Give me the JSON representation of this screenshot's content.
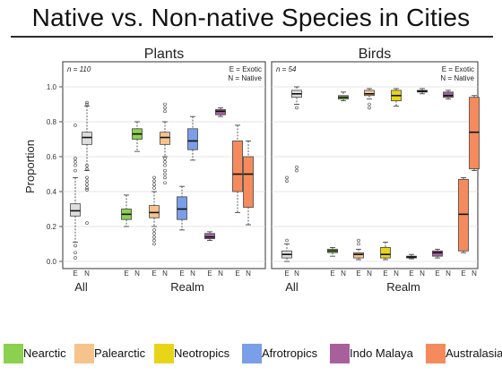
{
  "title": "Native vs. Non-native Species in Cities",
  "legend": [
    {
      "label": "Nearctic",
      "color": "#8cd04f"
    },
    {
      "label": "Palearctic",
      "color": "#f7c38d"
    },
    {
      "label": "Neotropics",
      "color": "#e8d51a"
    },
    {
      "label": "Afrotropics",
      "color": "#7a9ee8"
    },
    {
      "label": "Indo Malaya",
      "color": "#a8609d"
    },
    {
      "label": "Australasia",
      "color": "#f58b5c"
    }
  ],
  "chart_data": [
    {
      "type": "box",
      "title": "Plants",
      "ylabel": "Proportion",
      "ylim": [
        0,
        1
      ],
      "yticks": [
        "0.0",
        "0.2",
        "0.4",
        "0.6",
        "0.8",
        "1.0"
      ],
      "annotation_n": "n = 110",
      "key_text": [
        "E = Exotic",
        "N = Native"
      ],
      "group_labels": [
        "All",
        "Realm"
      ],
      "boxes": [
        {
          "label": "E",
          "region": "All",
          "q1": 0.26,
          "median": 0.29,
          "q3": 0.33,
          "whislo": 0.11,
          "whishi": 0.48,
          "fliers": [
            0.02,
            0.05,
            0.09,
            0.52,
            0.55,
            0.57,
            0.59,
            0.78
          ]
        },
        {
          "label": "N",
          "region": "All",
          "q1": 0.67,
          "median": 0.71,
          "q3": 0.74,
          "whislo": 0.52,
          "whishi": 0.89,
          "fliers": [
            0.22,
            0.41,
            0.42,
            0.44,
            0.46,
            0.48,
            0.53,
            0.55,
            0.9,
            0.91
          ]
        },
        {
          "label": "E",
          "region": "Nearctic",
          "q1": 0.24,
          "median": 0.27,
          "q3": 0.3,
          "whislo": 0.2,
          "whishi": 0.38,
          "fliers": []
        },
        {
          "label": "N",
          "region": "Nearctic",
          "q1": 0.7,
          "median": 0.73,
          "q3": 0.76,
          "whislo": 0.63,
          "whishi": 0.8,
          "fliers": []
        },
        {
          "label": "E",
          "region": "Palearctic",
          "q1": 0.25,
          "median": 0.28,
          "q3": 0.32,
          "whislo": 0.2,
          "whishi": 0.4,
          "fliers": [
            0.1,
            0.12,
            0.14,
            0.16,
            0.18,
            0.42,
            0.44,
            0.46,
            0.48
          ]
        },
        {
          "label": "N",
          "region": "Palearctic",
          "q1": 0.67,
          "median": 0.71,
          "q3": 0.74,
          "whislo": 0.6,
          "whishi": 0.8,
          "fliers": [
            0.45,
            0.48,
            0.5,
            0.52,
            0.55,
            0.57,
            0.59,
            0.86,
            0.88,
            0.9
          ]
        },
        {
          "label": "E",
          "region": "Afrotropics",
          "q1": 0.24,
          "median": 0.3,
          "q3": 0.37,
          "whislo": 0.18,
          "whishi": 0.43,
          "fliers": []
        },
        {
          "label": "N",
          "region": "Afrotropics",
          "q1": 0.64,
          "median": 0.69,
          "q3": 0.76,
          "whislo": 0.58,
          "whishi": 0.83,
          "fliers": []
        },
        {
          "label": "E",
          "region": "Indo Malaya",
          "q1": 0.13,
          "median": 0.14,
          "q3": 0.16,
          "whislo": 0.12,
          "whishi": 0.17,
          "fliers": []
        },
        {
          "label": "N",
          "region": "Indo Malaya",
          "q1": 0.84,
          "median": 0.86,
          "q3": 0.87,
          "whislo": 0.83,
          "whishi": 0.88,
          "fliers": []
        },
        {
          "label": "E",
          "region": "Australasia",
          "q1": 0.4,
          "median": 0.5,
          "q3": 0.69,
          "whislo": 0.28,
          "whishi": 0.78,
          "fliers": []
        },
        {
          "label": "N",
          "region": "Australasia",
          "q1": 0.31,
          "median": 0.5,
          "q3": 0.6,
          "whislo": 0.21,
          "whishi": 0.69,
          "fliers": []
        }
      ]
    },
    {
      "type": "box",
      "title": "Birds",
      "ylim": [
        0,
        1
      ],
      "annotation_n": "n = 54",
      "key_text": [
        "E = Exotic",
        "N = Native"
      ],
      "group_labels": [
        "All",
        "Realm"
      ],
      "boxes": [
        {
          "label": "E",
          "region": "All",
          "q1": 0.02,
          "median": 0.04,
          "q3": 0.06,
          "whislo": 0.0,
          "whishi": 0.1,
          "fliers": [
            0.12,
            0.46,
            0.48
          ]
        },
        {
          "label": "N",
          "region": "All",
          "q1": 0.94,
          "median": 0.96,
          "q3": 0.98,
          "whislo": 0.9,
          "whishi": 1.0,
          "fliers": [
            0.52,
            0.54,
            0.88
          ]
        },
        {
          "label": "E",
          "region": "Nearctic",
          "q1": 0.05,
          "median": 0.06,
          "q3": 0.07,
          "whislo": 0.03,
          "whishi": 0.08,
          "fliers": []
        },
        {
          "label": "N",
          "region": "Nearctic",
          "q1": 0.93,
          "median": 0.94,
          "q3": 0.95,
          "whislo": 0.92,
          "whishi": 0.97,
          "fliers": []
        },
        {
          "label": "E",
          "region": "Palearctic",
          "q1": 0.02,
          "median": 0.04,
          "q3": 0.05,
          "whislo": 0.01,
          "whishi": 0.07,
          "fliers": [
            0.1,
            0.12
          ]
        },
        {
          "label": "N",
          "region": "Palearctic",
          "q1": 0.95,
          "median": 0.96,
          "q3": 0.98,
          "whislo": 0.93,
          "whishi": 0.99,
          "fliers": [
            0.88,
            0.9
          ]
        },
        {
          "label": "E",
          "region": "Neotropics",
          "q1": 0.02,
          "median": 0.04,
          "q3": 0.08,
          "whislo": 0.01,
          "whishi": 0.11,
          "fliers": []
        },
        {
          "label": "N",
          "region": "Neotropics",
          "q1": 0.92,
          "median": 0.95,
          "q3": 0.98,
          "whislo": 0.89,
          "whishi": 0.99,
          "fliers": []
        },
        {
          "label": "E",
          "region": "Afrotropics",
          "q1": 0.02,
          "median": 0.025,
          "q3": 0.03,
          "whislo": 0.015,
          "whishi": 0.04,
          "fliers": []
        },
        {
          "label": "N",
          "region": "Afrotropics",
          "q1": 0.97,
          "median": 0.975,
          "q3": 0.98,
          "whislo": 0.96,
          "whishi": 0.99,
          "fliers": []
        },
        {
          "label": "E",
          "region": "Indo Malaya",
          "q1": 0.03,
          "median": 0.05,
          "q3": 0.06,
          "whislo": 0.02,
          "whishi": 0.07,
          "fliers": []
        },
        {
          "label": "N",
          "region": "Indo Malaya",
          "q1": 0.94,
          "median": 0.95,
          "q3": 0.97,
          "whislo": 0.93,
          "whishi": 0.98,
          "fliers": []
        },
        {
          "label": "E",
          "region": "Australasia",
          "q1": 0.06,
          "median": 0.27,
          "q3": 0.47,
          "whislo": 0.05,
          "whishi": 0.48,
          "fliers": []
        },
        {
          "label": "N",
          "region": "Australasia",
          "q1": 0.53,
          "median": 0.74,
          "q3": 0.94,
          "whislo": 0.52,
          "whishi": 0.95,
          "fliers": []
        }
      ]
    }
  ]
}
